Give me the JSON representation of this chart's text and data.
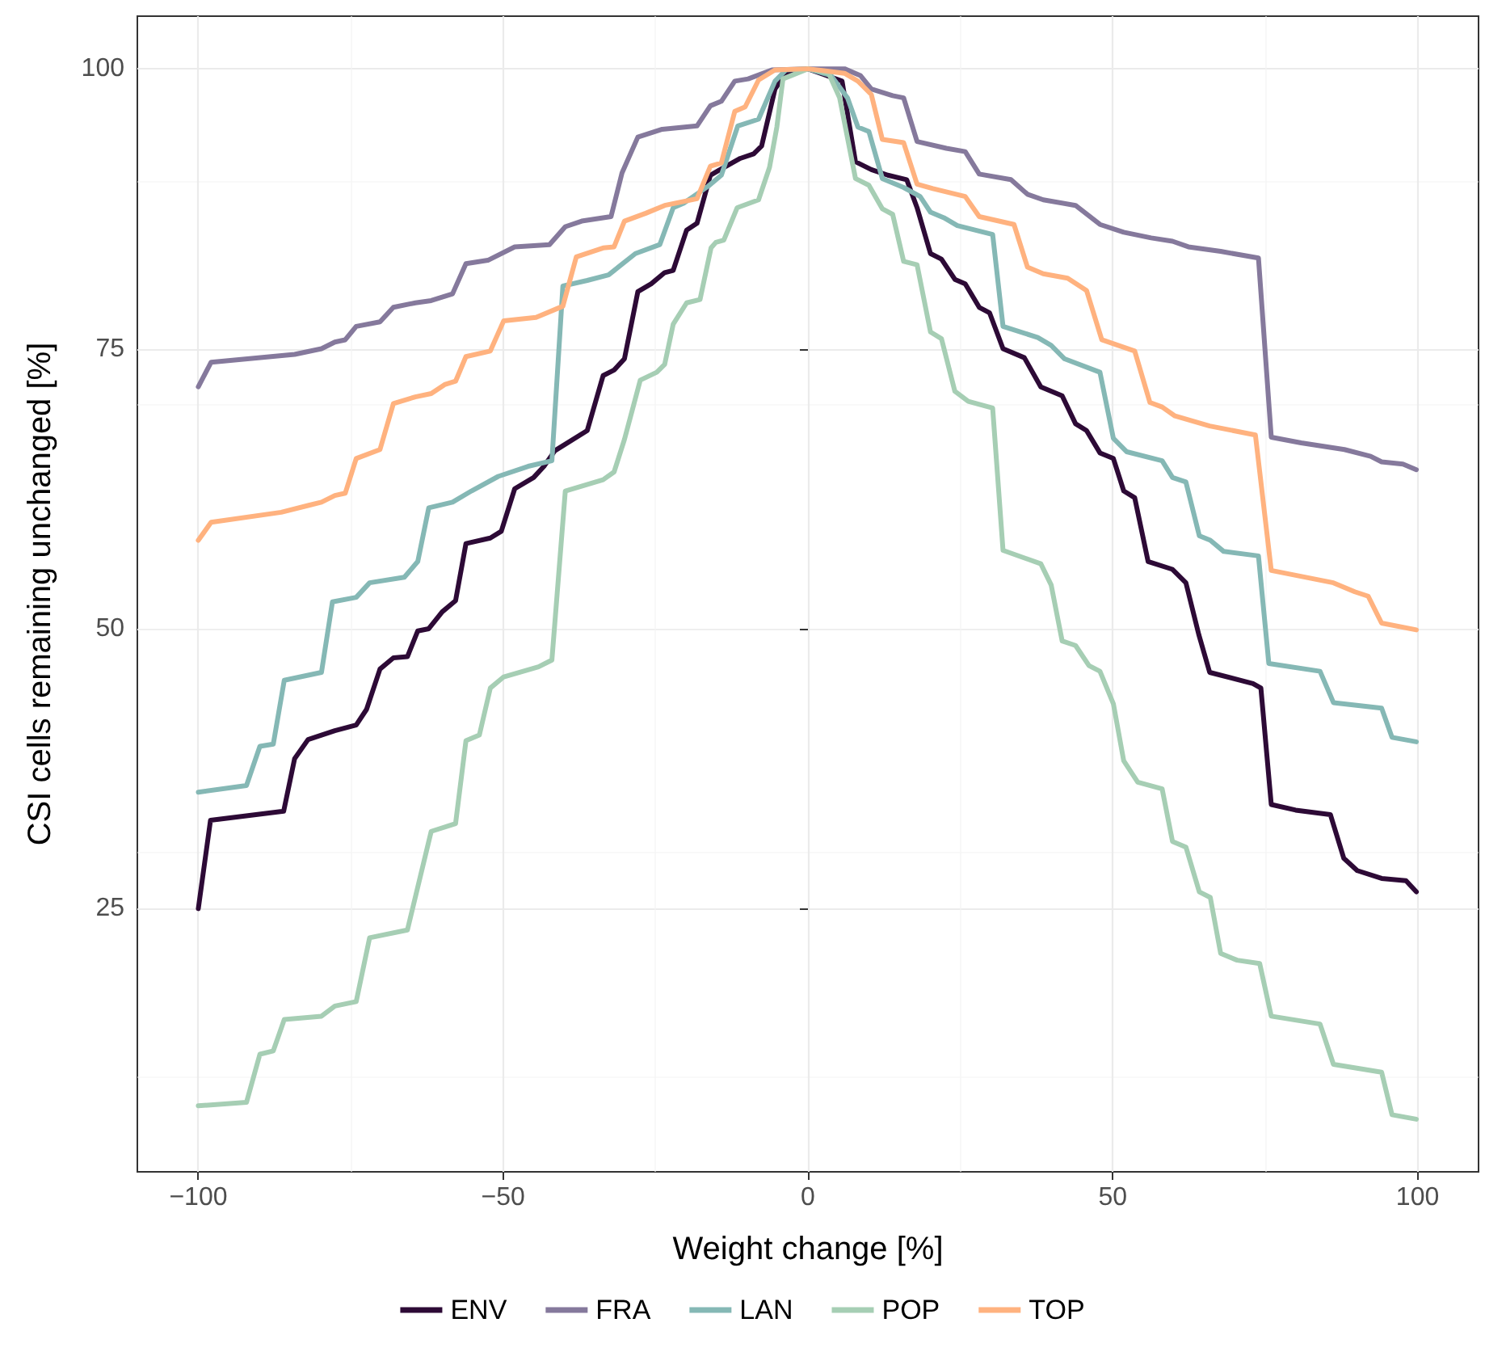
{
  "chart_data": {
    "type": "line",
    "xlabel": "Weight change [%]",
    "ylabel": "CSI cells remaining unchanged [%]",
    "xlim": [
      -110,
      110
    ],
    "xticks": [
      -100,
      -50,
      0,
      50,
      100
    ],
    "ylim": [
      1.5,
      104.7
    ],
    "yticks": [
      25,
      50,
      75,
      100
    ],
    "grid": true,
    "legend": "bottom",
    "marker": "none",
    "line_style": "solid",
    "series": [
      {
        "name": "ENV",
        "color": "#2d0a36",
        "x": [
          -100,
          -98,
          -86,
          -84.2,
          -82,
          -77.6,
          -74.1,
          -72.4,
          -70.2,
          -68,
          -65.7,
          -64,
          -62.2,
          -60,
          -57.8,
          -56.1,
          -52.1,
          -50.3,
          -48.1,
          -45,
          -43.3,
          -41.5,
          -36.2,
          -33.6,
          -31.8,
          -30.1,
          -27.9,
          -25.7,
          -23.5,
          -22.1,
          -19.9,
          -18.2,
          -16,
          -14.7,
          -11.1,
          -8.9,
          -7.6,
          -5.4,
          -3.6,
          0,
          5.6,
          7.8,
          10.4,
          13.1,
          16.2,
          17.9,
          20.1,
          21.9,
          24.1,
          25.8,
          28.1,
          29.8,
          32,
          35.5,
          38.2,
          41.7,
          43.9,
          45.7,
          47.9,
          50.1,
          51.8,
          53.6,
          55.8,
          59.8,
          62,
          64.1,
          65.9,
          73,
          74.3,
          76,
          80,
          85.7,
          87.9,
          90.1,
          94.1,
          98.1,
          99.8
        ],
        "values": [
          25,
          32.9,
          33.7,
          38.4,
          40.1,
          40.9,
          41.4,
          42.8,
          46.4,
          47.4,
          47.5,
          49.8,
          50,
          51.5,
          52.5,
          57.6,
          58.1,
          58.7,
          62.5,
          63.5,
          64.5,
          65.9,
          67.7,
          72.6,
          73.1,
          74.1,
          80.1,
          80.8,
          81.8,
          82,
          85.6,
          86.2,
          90.5,
          90.9,
          92,
          92.4,
          93.1,
          98.2,
          99.6,
          100,
          98.9,
          91.7,
          91,
          90.5,
          90.1,
          87.6,
          83.5,
          83,
          81.2,
          80.8,
          78.7,
          78.2,
          75,
          74.2,
          71.6,
          70.8,
          68.3,
          67.7,
          65.7,
          65.2,
          62.3,
          61.7,
          56,
          55.3,
          54.1,
          49.5,
          46.1,
          45.1,
          44.7,
          34.3,
          33.8,
          33.4,
          29.5,
          28.4,
          27.7,
          27.5,
          26.5
        ]
      },
      {
        "name": "FRA",
        "color": "#85799c",
        "x": [
          -100,
          -97.9,
          -84.2,
          -79.8,
          -77.6,
          -75.9,
          -74.1,
          -70.2,
          -68,
          -64.4,
          -61.8,
          -58.3,
          -56.1,
          -52.5,
          -48.1,
          -42.4,
          -39.8,
          -37.1,
          -32.3,
          -30.5,
          -27.9,
          -23.9,
          -18.2,
          -16,
          -14.2,
          -12,
          -9.8,
          -5.9,
          0,
          6,
          8.6,
          10.4,
          13.9,
          15.7,
          17.9,
          22.7,
          25.8,
          28.1,
          33.3,
          36,
          38.6,
          43.9,
          47.9,
          51.8,
          56.3,
          59.8,
          62.4,
          67.7,
          73.9,
          76,
          80.9,
          88,
          92.3,
          94.1,
          97.6,
          99.8
        ],
        "values": [
          71.6,
          73.8,
          74.5,
          75,
          75.6,
          75.8,
          77,
          77.4,
          78.7,
          79.1,
          79.3,
          79.9,
          82.6,
          82.9,
          84.1,
          84.3,
          85.9,
          86.4,
          86.8,
          90.7,
          93.9,
          94.6,
          94.9,
          96.7,
          97.1,
          98.9,
          99.1,
          99.9,
          100,
          100,
          99.4,
          98.2,
          97.6,
          97.4,
          93.5,
          92.9,
          92.6,
          90.6,
          90.1,
          88.8,
          88.3,
          87.8,
          86.1,
          85.4,
          84.9,
          84.6,
          84.1,
          83.7,
          83.1,
          67.1,
          66.6,
          66,
          65.4,
          64.9,
          64.7,
          64.2
        ]
      },
      {
        "name": "LAN",
        "color": "#85b8b5",
        "x": [
          -100,
          -92.1,
          -89.9,
          -87.7,
          -85.9,
          -79.8,
          -78,
          -74.1,
          -71.9,
          -66.2,
          -64,
          -62.2,
          -58.3,
          -55.2,
          -50.8,
          -45.9,
          -42,
          -40.2,
          -36.2,
          -32.7,
          -28.3,
          -24.3,
          -22.1,
          -20.4,
          -16.4,
          -14.2,
          -11.5,
          -8.1,
          -5.4,
          -3.6,
          0,
          3.8,
          6.5,
          8.2,
          10,
          12.2,
          15.7,
          18.4,
          20.1,
          22.3,
          24.5,
          30.3,
          32,
          37.7,
          39.9,
          42.1,
          47.9,
          50.1,
          52.3,
          58.1,
          59.8,
          62,
          64.2,
          66,
          68.2,
          73.9,
          75.6,
          84,
          86.2,
          94.1,
          95.8,
          99.8
        ],
        "values": [
          35.4,
          36,
          39.5,
          39.7,
          45.4,
          46.1,
          52.4,
          52.8,
          54.1,
          54.6,
          56,
          60.8,
          61.3,
          62.3,
          63.6,
          64.5,
          65,
          80.6,
          81.1,
          81.6,
          83.5,
          84.3,
          87.6,
          88,
          89.5,
          90.5,
          94.9,
          95.5,
          98.9,
          99.9,
          100,
          99.4,
          97.4,
          94.8,
          94.4,
          90.2,
          89.4,
          88.6,
          87.2,
          86.7,
          86,
          85.2,
          77,
          76,
          75.3,
          74.1,
          72.9,
          67,
          65.8,
          65,
          63.5,
          63.1,
          58.3,
          57.9,
          56.9,
          56.5,
          46.9,
          46.2,
          43.4,
          42.9,
          40.3,
          39.9
        ]
      },
      {
        "name": "POP",
        "color": "#a6ceb4",
        "x": [
          -100,
          -92.1,
          -89.9,
          -87.7,
          -85.9,
          -79.8,
          -77.6,
          -74.1,
          -71.9,
          -65.7,
          -61.8,
          -57.8,
          -56.1,
          -53.9,
          -52.1,
          -49.9,
          -44.2,
          -42,
          -39.8,
          -33.6,
          -31.8,
          -30.1,
          -27.5,
          -24.8,
          -23.5,
          -22.1,
          -19.9,
          -17.7,
          -15.9,
          -15.1,
          -13.8,
          -11.6,
          -8.1,
          -6.3,
          -5.1,
          -4.1,
          0,
          3.4,
          5.2,
          7.8,
          10,
          12.2,
          13.9,
          15.7,
          17.9,
          20.1,
          21.9,
          24.1,
          26.3,
          30.3,
          32,
          38.2,
          39.9,
          41.7,
          43.9,
          46.1,
          47.9,
          50.1,
          51.8,
          54.1,
          58.1,
          59.8,
          62,
          64.2,
          66,
          67.7,
          70.4,
          74.1,
          76,
          84,
          86.2,
          94.1,
          95.8,
          99.8
        ],
        "values": [
          7.4,
          7.7,
          12,
          12.3,
          15.1,
          15.4,
          16.3,
          16.7,
          22.4,
          23.1,
          31.9,
          32.6,
          40,
          40.5,
          44.7,
          45.7,
          46.6,
          47.2,
          62.3,
          63.3,
          64,
          66.9,
          72.2,
          72.9,
          73.6,
          77.2,
          79.1,
          79.4,
          84,
          84.5,
          84.7,
          87.6,
          88.3,
          91.2,
          94.8,
          99.1,
          100,
          99.6,
          97.4,
          90.2,
          89.6,
          87.5,
          87,
          82.8,
          82.5,
          76.5,
          75.9,
          71.2,
          70.3,
          69.7,
          57,
          55.8,
          53.9,
          48.9,
          48.5,
          46.7,
          46.2,
          43.3,
          38.2,
          36.3,
          35.7,
          31,
          30.5,
          26.5,
          26,
          21,
          20.4,
          20.1,
          15.4,
          14.7,
          11.1,
          10.4,
          6.6,
          6.2
        ]
      },
      {
        "name": "TOP",
        "color": "#ffb27f",
        "x": [
          -100,
          -97.9,
          -86.4,
          -82,
          -79.8,
          -77.6,
          -75.9,
          -74.1,
          -70.2,
          -68,
          -64.4,
          -61.8,
          -59.6,
          -57.8,
          -56.1,
          -52.1,
          -49.9,
          -44.6,
          -40.2,
          -38,
          -33.6,
          -31.8,
          -30.1,
          -26.6,
          -23.5,
          -18.2,
          -16,
          -14.2,
          -12,
          -10.3,
          -8.1,
          -5.4,
          0,
          6,
          8.2,
          10.4,
          12.2,
          15.7,
          17.9,
          20.5,
          25.8,
          28.1,
          33.8,
          36,
          38.6,
          42.6,
          45.7,
          48.2,
          53.6,
          56.1,
          58.1,
          60.2,
          65.9,
          73.4,
          76,
          86.2,
          89.7,
          91.9,
          94.1,
          99.8
        ],
        "values": [
          57.9,
          59.5,
          60.4,
          61,
          61.3,
          61.9,
          62.1,
          65.2,
          66,
          70.1,
          70.7,
          71,
          71.8,
          72.1,
          74.3,
          74.8,
          77.5,
          77.8,
          78.8,
          83.2,
          84,
          84.1,
          86.4,
          87.1,
          87.8,
          88.4,
          91.3,
          91.6,
          96.2,
          96.6,
          99,
          99.9,
          100,
          99.6,
          98.9,
          97.7,
          93.7,
          93.4,
          89.7,
          89.3,
          88.6,
          86.8,
          86.1,
          82.3,
          81.7,
          81.3,
          80.2,
          75.8,
          74.8,
          70.2,
          69.8,
          69,
          68.1,
          67.3,
          55.2,
          54.1,
          53.3,
          52.9,
          50.5,
          49.9
        ]
      }
    ]
  }
}
